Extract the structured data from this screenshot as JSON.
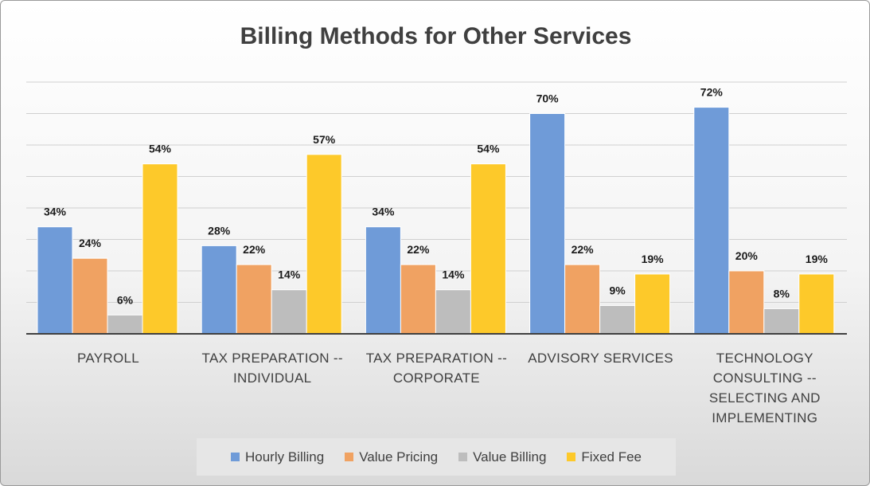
{
  "chart_data": {
    "type": "bar",
    "title": "Billing Methods for Other Services",
    "xlabel": "",
    "ylabel": "",
    "ylim": [
      0,
      80
    ],
    "grid": true,
    "legend_position": "bottom",
    "categories": [
      [
        "PAYROLL"
      ],
      [
        "TAX PREPARATION --",
        "INDIVIDUAL"
      ],
      [
        "TAX PREPARATION --",
        "CORPORATE"
      ],
      [
        "ADVISORY SERVICES"
      ],
      [
        "TECHNOLOGY",
        "CONSULTING --",
        "SELECTING AND",
        "IMPLEMENTING"
      ]
    ],
    "series": [
      {
        "name": "Hourly Billing",
        "color": "#6f9bd8",
        "values": [
          34,
          28,
          34,
          70,
          72
        ],
        "labels": [
          "34%",
          "28%",
          "34%",
          "70%",
          "72%"
        ]
      },
      {
        "name": "Value Pricing",
        "color": "#f0a262",
        "values": [
          24,
          22,
          22,
          22,
          20
        ],
        "labels": [
          "24%",
          "22%",
          "22%",
          "22%",
          "20%"
        ]
      },
      {
        "name": "Value Billing",
        "color": "#bdbdbd",
        "values": [
          6,
          14,
          14,
          9,
          8
        ],
        "labels": [
          "6%",
          "14%",
          "14%",
          "9%",
          "8%"
        ]
      },
      {
        "name": "Fixed Fee",
        "color": "#fdc92a",
        "values": [
          54,
          57,
          54,
          19,
          19
        ],
        "labels": [
          "54%",
          "57%",
          "54%",
          "19%",
          "19%"
        ]
      }
    ]
  }
}
